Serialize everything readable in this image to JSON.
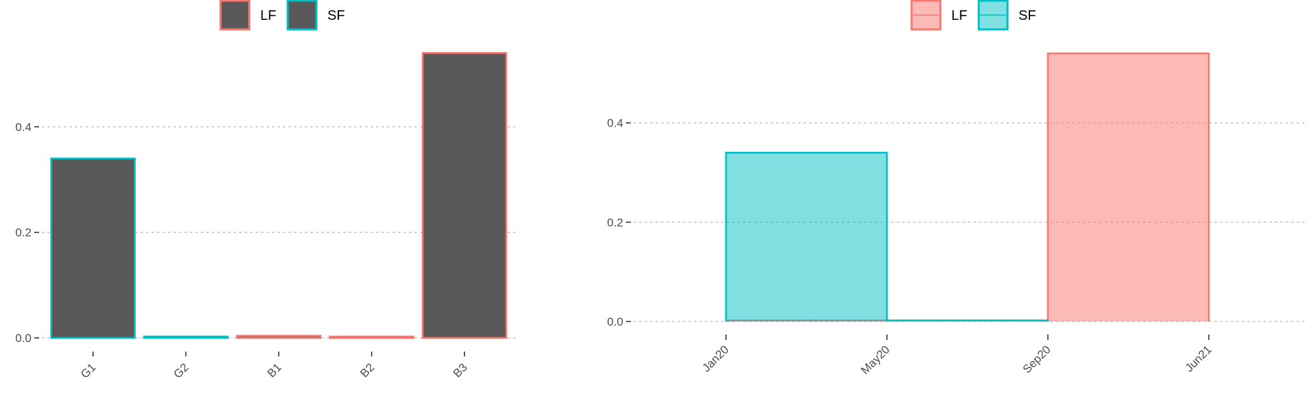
{
  "chart_data": [
    {
      "type": "bar",
      "categories": [
        "G1",
        "G2",
        "B1",
        "B2",
        "B3"
      ],
      "values": [
        0.34,
        0.002,
        0.004,
        0.002,
        0.54
      ],
      "series_of_category": [
        "SF",
        "SF",
        "LF",
        "LF",
        "LF"
      ],
      "bar_fill": "#595959",
      "legend": [
        {
          "name": "LF",
          "color": "#F8766D"
        },
        {
          "name": "SF",
          "color": "#00BFC4"
        }
      ],
      "legend_position": "top",
      "y_ticks": [
        0.0,
        0.2,
        0.4
      ],
      "y_tick_labels": [
        "0.0",
        "0.2",
        "0.4"
      ],
      "ylim": [
        0,
        0.56
      ],
      "grid": "horizontal dotted",
      "xlabel": "",
      "ylabel": ""
    },
    {
      "type": "area",
      "x_dates": [
        "2020-01",
        "2020-05",
        "2020-09",
        "2021-06"
      ],
      "x_tick_labels": [
        "Jan20",
        "May20",
        "Sep20",
        "Jun21"
      ],
      "series": [
        {
          "name": "LF",
          "color": "#F8766D",
          "fill": "#F8766D",
          "segments": [
            {
              "x": [
                "2020-01",
                "2020-05"
              ],
              "y": 0.002
            },
            {
              "x": [
                "2020-05",
                "2020-09"
              ],
              "y": 0.002
            },
            {
              "x": [
                "2020-09",
                "2021-06"
              ],
              "y": 0.54
            }
          ]
        },
        {
          "name": "SF",
          "color": "#00BFC4",
          "fill": "#00BFC4",
          "segments": [
            {
              "x": [
                "2020-01",
                "2020-05"
              ],
              "y": 0.34
            },
            {
              "x": [
                "2020-05",
                "2020-09"
              ],
              "y": 0.002
            }
          ]
        }
      ],
      "legend_position": "top",
      "y_ticks": [
        0.0,
        0.2,
        0.4
      ],
      "y_tick_labels": [
        "0.0",
        "0.2",
        "0.4"
      ],
      "ylim": [
        0,
        0.54
      ],
      "grid": "horizontal dotted",
      "xlabel": "",
      "ylabel": ""
    }
  ]
}
